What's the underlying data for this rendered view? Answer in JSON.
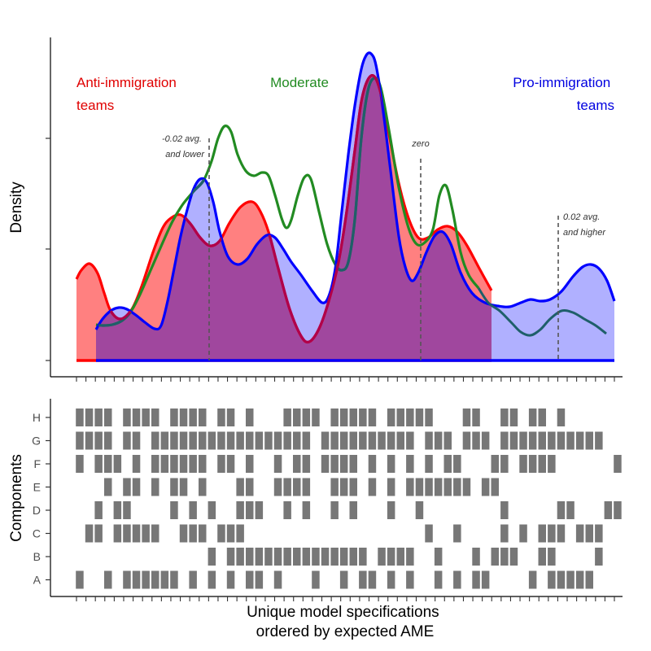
{
  "chart_data": [
    {
      "type": "area",
      "ylabel": "Density",
      "group_labels": {
        "anti": [
          "Anti-immigration",
          "teams"
        ],
        "moderate": "Moderate",
        "pro": [
          "Pro-immigration",
          "teams"
        ]
      },
      "annotations": {
        "low": [
          "-0.02 avg.",
          "and lower"
        ],
        "zero": "zero",
        "high": [
          "0.02 avg.",
          "and higher"
        ]
      },
      "series": [
        {
          "key": "anti",
          "color": "#ff0000",
          "fill": "#ff8080",
          "points": [
            [
              94,
              343
            ],
            [
              100,
              332
            ],
            [
              110,
              324
            ],
            [
              120,
              336
            ],
            [
              128,
              360
            ],
            [
              136,
              382
            ],
            [
              148,
              392
            ],
            [
              162,
              380
            ],
            [
              174,
              352
            ],
            [
              188,
              310
            ],
            [
              200,
              280
            ],
            [
              210,
              268
            ],
            [
              222,
              264
            ],
            [
              234,
              275
            ],
            [
              246,
              292
            ],
            [
              258,
              302
            ],
            [
              270,
              296
            ],
            [
              282,
              274
            ],
            [
              296,
              254
            ],
            [
              310,
              248
            ],
            [
              320,
              260
            ],
            [
              330,
              285
            ],
            [
              342,
              330
            ],
            [
              356,
              380
            ],
            [
              370,
              413
            ],
            [
              380,
              420
            ],
            [
              392,
              404
            ],
            [
              404,
              370
            ],
            [
              416,
              322
            ],
            [
              426,
              260
            ],
            [
              436,
              185
            ],
            [
              444,
              125
            ],
            [
              452,
              98
            ],
            [
              460,
              94
            ],
            [
              468,
              115
            ],
            [
              478,
              165
            ],
            [
              490,
              225
            ],
            [
              502,
              268
            ],
            [
              514,
              292
            ],
            [
              526,
              292
            ],
            [
              538,
              282
            ],
            [
              550,
              278
            ],
            [
              562,
              285
            ],
            [
              574,
              302
            ],
            [
              588,
              328
            ],
            [
              604,
              357
            ]
          ]
        },
        {
          "key": "moderate",
          "color": "#228b22",
          "points": [
            [
              118,
              399
            ],
            [
              126,
              400
            ],
            [
              138,
              399
            ],
            [
              150,
              394
            ],
            [
              160,
              384
            ],
            [
              172,
              362
            ],
            [
              186,
              330
            ],
            [
              200,
              298
            ],
            [
              212,
              272
            ],
            [
              224,
              252
            ],
            [
              238,
              235
            ],
            [
              250,
              222
            ],
            [
              260,
              198
            ],
            [
              268,
              170
            ],
            [
              276,
              155
            ],
            [
              284,
              162
            ],
            [
              292,
              190
            ],
            [
              302,
              210
            ],
            [
              312,
              216
            ],
            [
              322,
              212
            ],
            [
              330,
              216
            ],
            [
              338,
              240
            ],
            [
              346,
              268
            ],
            [
              352,
              280
            ],
            [
              358,
              270
            ],
            [
              366,
              240
            ],
            [
              374,
              218
            ],
            [
              382,
              220
            ],
            [
              392,
              260
            ],
            [
              402,
              300
            ],
            [
              412,
              325
            ],
            [
              420,
              332
            ],
            [
              428,
              322
            ],
            [
              436,
              270
            ],
            [
              444,
              170
            ],
            [
              452,
              112
            ],
            [
              460,
              96
            ],
            [
              468,
              108
            ],
            [
              478,
              160
            ],
            [
              490,
              230
            ],
            [
              502,
              280
            ],
            [
              512,
              300
            ],
            [
              522,
              298
            ],
            [
              532,
              282
            ],
            [
              540,
              240
            ],
            [
              548,
              228
            ],
            [
              556,
              258
            ],
            [
              566,
              310
            ],
            [
              576,
              338
            ],
            [
              588,
              354
            ]
          ]
        },
        {
          "key": "pro",
          "color": "#0000ff",
          "fill": "#b0b0ff",
          "points": [
            [
              118,
              405
            ],
            [
              126,
              392
            ],
            [
              136,
              382
            ],
            [
              146,
              378
            ],
            [
              156,
              380
            ],
            [
              168,
              388
            ],
            [
              178,
              396
            ],
            [
              190,
              404
            ],
            [
              198,
              400
            ],
            [
              206,
              370
            ],
            [
              214,
              330
            ],
            [
              222,
              290
            ],
            [
              230,
              258
            ],
            [
              238,
              232
            ],
            [
              246,
              220
            ],
            [
              254,
              224
            ],
            [
              262,
              248
            ],
            [
              270,
              285
            ],
            [
              280,
              315
            ],
            [
              292,
              325
            ],
            [
              304,
              318
            ],
            [
              316,
              300
            ],
            [
              328,
              289
            ],
            [
              338,
              292
            ],
            [
              348,
              306
            ],
            [
              358,
              322
            ],
            [
              370,
              338
            ],
            [
              384,
              358
            ],
            [
              396,
              372
            ],
            [
              404,
              364
            ],
            [
              412,
              330
            ],
            [
              420,
              260
            ],
            [
              428,
              190
            ],
            [
              436,
              130
            ],
            [
              444,
              85
            ],
            [
              450,
              68
            ],
            [
              456,
              66
            ],
            [
              462,
              80
            ],
            [
              470,
              130
            ],
            [
              480,
              210
            ],
            [
              490,
              290
            ],
            [
              498,
              328
            ],
            [
              506,
              345
            ],
            [
              514,
              335
            ],
            [
              524,
              310
            ],
            [
              534,
              290
            ],
            [
              544,
              285
            ],
            [
              554,
              300
            ],
            [
              566,
              335
            ],
            [
              580,
              360
            ],
            [
              596,
              372
            ],
            [
              612,
              376
            ],
            [
              626,
              377
            ],
            [
              640,
              372
            ],
            [
              652,
              368
            ],
            [
              664,
              370
            ],
            [
              676,
              368
            ],
            [
              690,
              358
            ],
            [
              704,
              340
            ],
            [
              716,
              328
            ],
            [
              726,
              325
            ],
            [
              736,
              330
            ],
            [
              746,
              345
            ],
            [
              755,
              370
            ]
          ]
        }
      ],
      "overlap_color": "#a0479e",
      "reference_lines": {
        "low": 257,
        "zero": 517,
        "high": 686
      }
    },
    {
      "type": "heatmap",
      "xlabel": [
        "Unique model specifications",
        "ordered by expected AME"
      ],
      "ylabel": "Components",
      "rows": [
        "H",
        "G",
        "F",
        "E",
        "D",
        "C",
        "B",
        "A"
      ],
      "n_specifications": 58,
      "active": {
        "H": "1111011110111101101000111101111101111100011001101101000000",
        "G": "1111011011111111111111111011111111110111011101111111111100",
        "F": "1011101011111101101001011011110101010101100011011110000001",
        "E": "0001011010110100011001111001110101011111110110000000000000",
        "D": "0010110000101010011100101001010001001000000001000001100011",
        "C": "0110111110011101110000000000000000000100100001010111011100",
        "B": "0000000000000010111111111111111011110010001011100110000100",
        "A": "1001011111101010101101000100101101010010101100001011111000"
      },
      "cell_color": "#777777"
    }
  ]
}
